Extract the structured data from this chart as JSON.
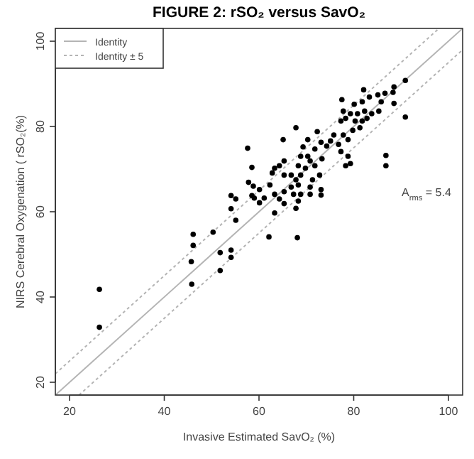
{
  "chart_data": {
    "type": "scatter",
    "title": "FIGURE 2: rSO₂ versus SavO₂",
    "xlabel": "Invasive Estimated SavO₂ (%)",
    "ylabel": "NIRS Cerebral Oxygenation ( rSO₂(%)",
    "annotations": [
      "A$_{rms}$ = 5.4"
    ],
    "xlim": [
      17,
      103
    ],
    "ylim": [
      17,
      103
    ],
    "xticks": [
      20,
      40,
      60,
      80,
      100
    ],
    "yticks": [
      20,
      40,
      60,
      80,
      100
    ],
    "grid": false,
    "legend": "top left",
    "series": [
      {
        "color": "#000000",
        "marker": "circle",
        "x": [
          26.3,
          26.3,
          45.8,
          45.7,
          46.1,
          46.1,
          50.3,
          51.8,
          51.8,
          54.1,
          54.1,
          54.1,
          54.1,
          55.1,
          55.1,
          57.6,
          58.5,
          57.8,
          58.8,
          60.1,
          58.5,
          59,
          60.1,
          61.1,
          62.1,
          90.9,
          88.5,
          88.3,
          86.6,
          85.1,
          83.3,
          82.1,
          81.8,
          80.1,
          77.5,
          85.8,
          88.5,
          90.9,
          85.3,
          83.8,
          82.3,
          80.8,
          79.3,
          77.8,
          78.3,
          80.3,
          81.8,
          82.8,
          81.3,
          79.8,
          77.3,
          75.8,
          77.8,
          76.8,
          78.8,
          75.1,
          74.3,
          77.3,
          78.8,
          79.3,
          78.3,
          86.8,
          86.8,
          72.3,
          70.3,
          73.1,
          71.8,
          73.3,
          71.8,
          72.8,
          71.3,
          73.1,
          73.1,
          70.8,
          70.8,
          69.3,
          68.8,
          70.3,
          70.8,
          69.8,
          68.3,
          67.8,
          65.1,
          65.3,
          64.3,
          63.3,
          62.8,
          65.3,
          66.8,
          68.8,
          67.8,
          68.3,
          66.8,
          67.3,
          68.8,
          68.3,
          67.8,
          65.3,
          64.3,
          63.3,
          62.3,
          65.3,
          63.3,
          68.1
        ],
        "values": [
          41.8,
          32.9,
          43,
          48.3,
          52.1,
          54.7,
          55.2,
          50.4,
          46.2,
          51,
          49.3,
          60.7,
          63.8,
          63,
          58,
          74.9,
          70.4,
          66.9,
          66,
          65.2,
          63.8,
          63.2,
          62.1,
          63.2,
          54.1,
          90.8,
          89.3,
          88,
          87.8,
          87.4,
          86.9,
          88.6,
          85.8,
          85.2,
          86.3,
          85.8,
          85.4,
          82.2,
          83.6,
          83,
          83.6,
          83,
          83,
          83.6,
          81.9,
          81.3,
          81.3,
          81.9,
          79.7,
          79.1,
          81.3,
          78,
          78,
          75.8,
          76.9,
          76.6,
          75.4,
          74.1,
          73,
          71.3,
          70.8,
          73.2,
          70.8,
          78.8,
          76.9,
          76.3,
          74.7,
          72.4,
          70.8,
          68.6,
          67.5,
          65.2,
          63.9,
          65.8,
          64.1,
          75.2,
          73,
          73,
          71.9,
          70.2,
          70.8,
          79.7,
          76.9,
          71.9,
          70.8,
          70.2,
          69.1,
          68.6,
          68.6,
          68.6,
          67.5,
          66.3,
          65.8,
          64.1,
          64.1,
          62.5,
          60.8,
          64.7,
          63,
          64.1,
          66.3,
          61.9,
          59.7,
          53.9
        ]
      },
      {
        "type": "line",
        "name": "Identity",
        "color": "#b4b4b4",
        "line_style": "solid",
        "marker": "none",
        "x": [
          17,
          103
        ],
        "values": [
          17,
          103
        ]
      },
      {
        "type": "line",
        "name": "Identity ± 5",
        "color": "#b4b4b4",
        "line_style": "dotted",
        "marker": "none",
        "x": [
          17,
          98
        ],
        "values": [
          22,
          103
        ]
      },
      {
        "type": "line",
        "color": "#b4b4b4",
        "line_style": "dotted",
        "marker": "none",
        "x": [
          22,
          103
        ],
        "values": [
          17,
          98
        ]
      }
    ]
  }
}
